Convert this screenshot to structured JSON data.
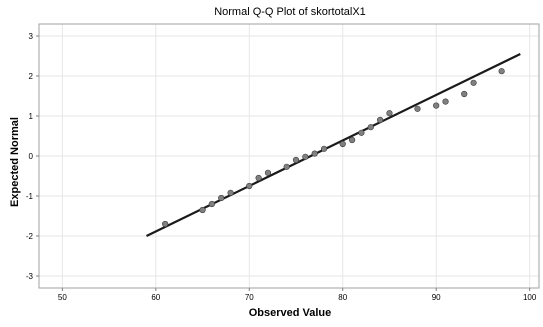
{
  "chart_data": {
    "type": "scatter",
    "title": "Normal Q-Q Plot of skortotalX1",
    "xlabel": "Observed Value",
    "ylabel": "Expected Normal",
    "xlim": [
      47.5,
      101
    ],
    "ylim": [
      -3.3,
      3.3
    ],
    "x_ticks": [
      50,
      60,
      70,
      80,
      90,
      100
    ],
    "y_ticks": [
      -3,
      -2,
      -1,
      0,
      1,
      2,
      3
    ],
    "grid": true,
    "points": [
      {
        "x": 61,
        "y": -1.7
      },
      {
        "x": 65,
        "y": -1.35
      },
      {
        "x": 66,
        "y": -1.2
      },
      {
        "x": 67,
        "y": -1.05
      },
      {
        "x": 68,
        "y": -0.92
      },
      {
        "x": 70,
        "y": -0.75
      },
      {
        "x": 71,
        "y": -0.55
      },
      {
        "x": 72,
        "y": -0.42
      },
      {
        "x": 74,
        "y": -0.27
      },
      {
        "x": 75,
        "y": -0.1
      },
      {
        "x": 76,
        "y": -0.02
      },
      {
        "x": 77,
        "y": 0.06
      },
      {
        "x": 78,
        "y": 0.18
      },
      {
        "x": 80,
        "y": 0.3
      },
      {
        "x": 81,
        "y": 0.4
      },
      {
        "x": 82,
        "y": 0.58
      },
      {
        "x": 83,
        "y": 0.72
      },
      {
        "x": 84,
        "y": 0.9
      },
      {
        "x": 85,
        "y": 1.07
      },
      {
        "x": 88,
        "y": 1.18
      },
      {
        "x": 90,
        "y": 1.26
      },
      {
        "x": 91,
        "y": 1.36
      },
      {
        "x": 93,
        "y": 1.55
      },
      {
        "x": 94,
        "y": 1.83
      },
      {
        "x": 97,
        "y": 2.12
      }
    ],
    "reference_line": {
      "x": [
        59,
        99
      ],
      "y": [
        -2.0,
        2.55
      ]
    },
    "point_color": "#808080",
    "line_color": "#1a1a1a",
    "grid_color": "#e6e6e6"
  }
}
